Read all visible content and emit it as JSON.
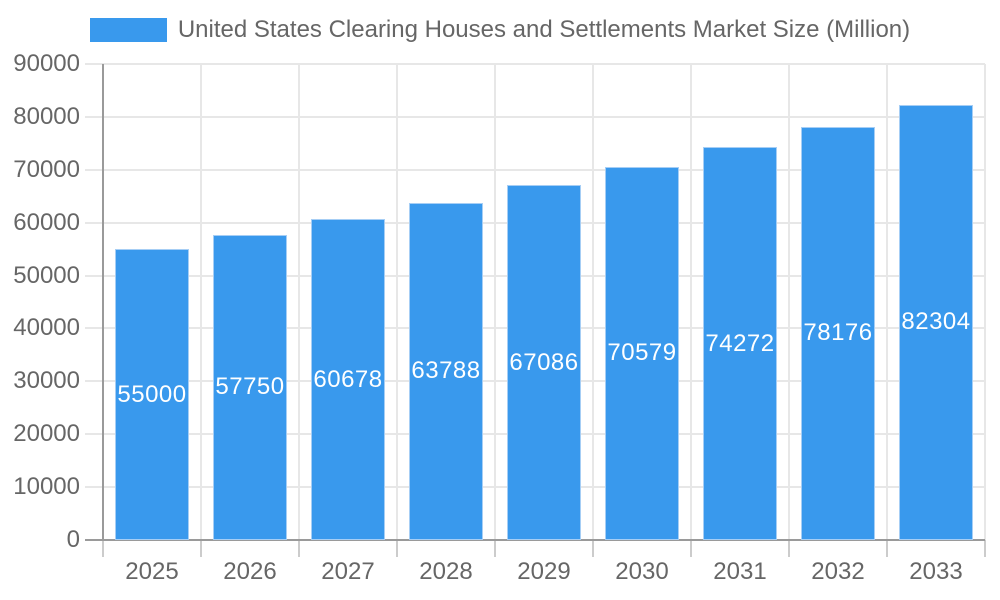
{
  "chart_data": {
    "type": "bar",
    "title": "United States Clearing Houses and Settlements Market Size (Million)",
    "categories": [
      "2025",
      "2026",
      "2027",
      "2028",
      "2029",
      "2030",
      "2031",
      "2032",
      "2033"
    ],
    "values": [
      55000,
      57750,
      60678,
      63788,
      67086,
      70579,
      74272,
      78176,
      82304
    ],
    "xlabel": "",
    "ylabel": "",
    "ylim": [
      0,
      90000
    ],
    "ytick_step": 10000,
    "yticks": [
      0,
      10000,
      20000,
      30000,
      40000,
      50000,
      60000,
      70000,
      80000,
      90000
    ],
    "grid": true,
    "legend_position": "top",
    "bar_color": "#3999ed",
    "bar_border_color": "#a6cef5",
    "value_label_color": "#ffffff",
    "axis_text_color": "#666666",
    "grid_color": "#e7e7e7",
    "tick_color": "#cccccc",
    "axis_line_color": "#9a9a9a"
  }
}
